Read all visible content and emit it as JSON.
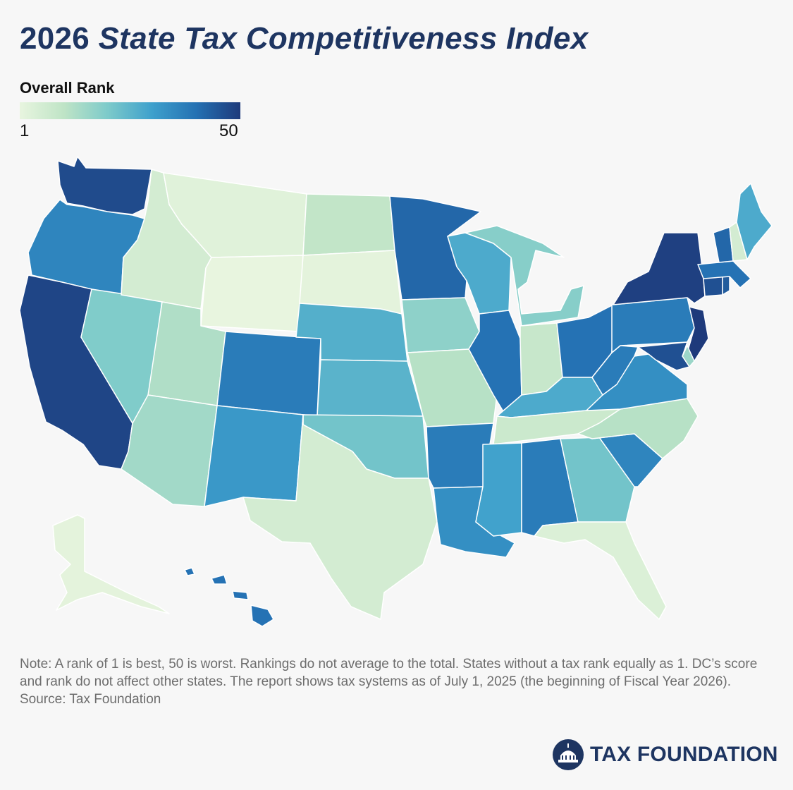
{
  "title": {
    "year": "2026",
    "italic": "State Tax Competitiveness Index"
  },
  "legend": {
    "title": "Overall Rank",
    "min_label": "1",
    "max_label": "50",
    "colors": [
      "#e8f5df",
      "#bfe4c6",
      "#7ccaca",
      "#3ea0cc",
      "#2471b3",
      "#1e3a7b"
    ]
  },
  "map_data": {
    "type": "choropleth",
    "metric": "Overall Rank",
    "range": [
      1,
      50
    ],
    "states": [
      {
        "state": "WA",
        "shade": 47
      },
      {
        "state": "OR",
        "shade": 36
      },
      {
        "state": "CA",
        "shade": 48
      },
      {
        "state": "NV",
        "shade": 20
      },
      {
        "state": "ID",
        "shade": 6
      },
      {
        "state": "MT",
        "shade": 3
      },
      {
        "state": "WY",
        "shade": 1
      },
      {
        "state": "UT",
        "shade": 13
      },
      {
        "state": "AZ",
        "shade": 15
      },
      {
        "state": "CO",
        "shade": 38
      },
      {
        "state": "NM",
        "shade": 32
      },
      {
        "state": "ND",
        "shade": 10
      },
      {
        "state": "SD",
        "shade": 2
      },
      {
        "state": "NE",
        "shade": 27
      },
      {
        "state": "KS",
        "shade": 26
      },
      {
        "state": "OK",
        "shade": 22
      },
      {
        "state": "TX",
        "shade": 6
      },
      {
        "state": "MN",
        "shade": 42
      },
      {
        "state": "IA",
        "shade": 18
      },
      {
        "state": "MO",
        "shade": 12
      },
      {
        "state": "AR",
        "shade": 38
      },
      {
        "state": "LA",
        "shade": 34
      },
      {
        "state": "WI",
        "shade": 28
      },
      {
        "state": "IL",
        "shade": 40
      },
      {
        "state": "MI",
        "shade": 19
      },
      {
        "state": "IN",
        "shade": 9
      },
      {
        "state": "OH",
        "shade": 40
      },
      {
        "state": "KY",
        "shade": 28
      },
      {
        "state": "TN",
        "shade": 8
      },
      {
        "state": "MS",
        "shade": 30
      },
      {
        "state": "AL",
        "shade": 38
      },
      {
        "state": "GA",
        "shade": 22
      },
      {
        "state": "FL",
        "shade": 4
      },
      {
        "state": "SC",
        "shade": 36
      },
      {
        "state": "NC",
        "shade": 12
      },
      {
        "state": "VA",
        "shade": 34
      },
      {
        "state": "WV",
        "shade": 38
      },
      {
        "state": "PA",
        "shade": 38
      },
      {
        "state": "NY",
        "shade": 49
      },
      {
        "state": "VT",
        "shade": 42
      },
      {
        "state": "NH",
        "shade": 6
      },
      {
        "state": "ME",
        "shade": 28
      },
      {
        "state": "MA",
        "shade": 40
      },
      {
        "state": "CT",
        "shade": 46
      },
      {
        "state": "RI",
        "shade": 44
      },
      {
        "state": "NJ",
        "shade": 50
      },
      {
        "state": "DE",
        "shade": 16
      },
      {
        "state": "MD",
        "shade": 46
      },
      {
        "state": "AK",
        "shade": 2
      },
      {
        "state": "HI",
        "shade": 40
      }
    ]
  },
  "note": "Note: A rank of 1 is best, 50 is worst. Rankings do not average to the total. States without a tax rank equally as 1. DC’s score and rank do not affect other states. The report shows tax systems as of July 1, 2025 (the beginning of Fiscal Year 2026).",
  "source": "Source: Tax Foundation",
  "logo": {
    "text": "TAX FOUNDATION",
    "icon": "capitol-dome-icon"
  }
}
